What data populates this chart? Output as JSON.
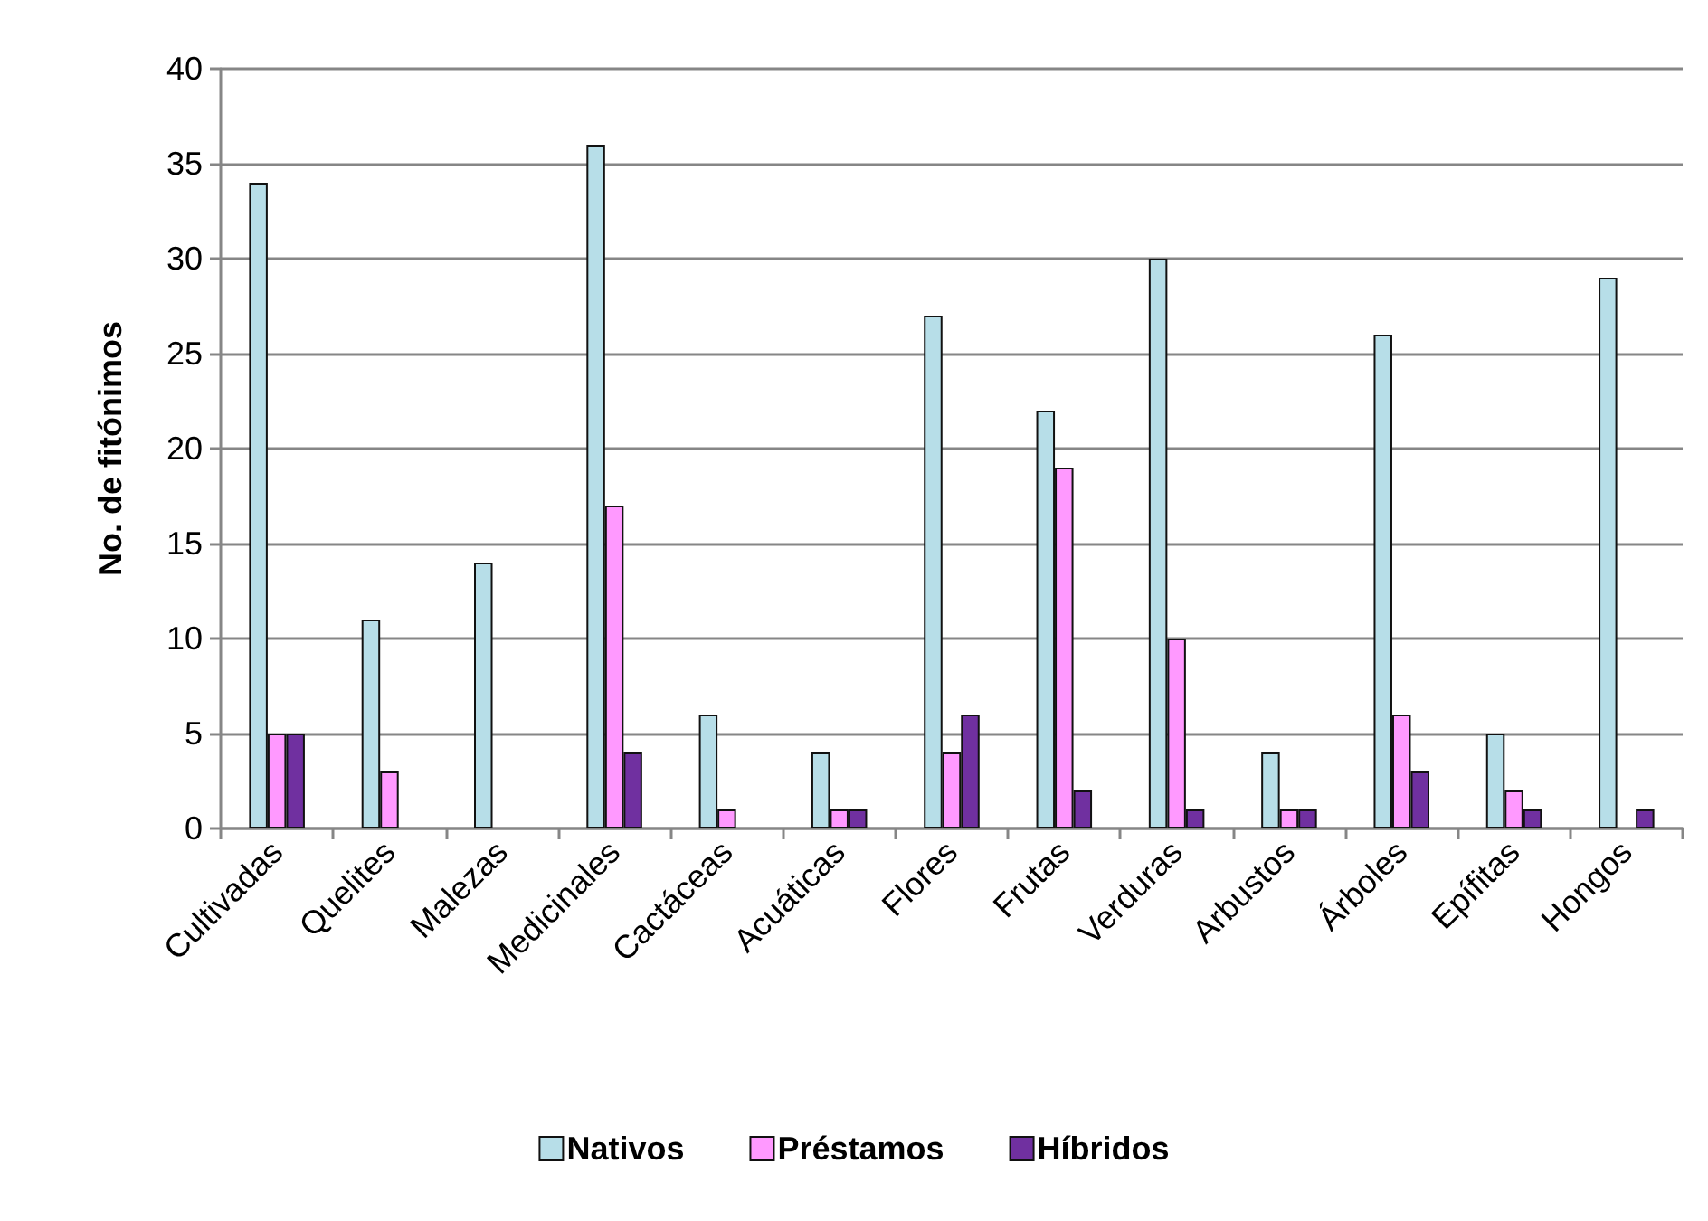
{
  "chart_data": {
    "type": "bar",
    "ylabel": "No. de fitónimos",
    "categories": [
      "Cultivadas",
      "Quelites",
      "Malezas",
      "Medicinales",
      "Cactáceas",
      "Acuáticas",
      "Flores",
      "Frutas",
      "Verduras",
      "Arbustos",
      "Árboles",
      "Epífitas",
      "Hongos"
    ],
    "series": [
      {
        "name": "Nativos",
        "color": "#b7dee8",
        "values": [
          34,
          11,
          14,
          36,
          6,
          4,
          27,
          22,
          30,
          4,
          26,
          5,
          29
        ]
      },
      {
        "name": "Préstamos",
        "color": "#ff99ff",
        "values": [
          5,
          3,
          0,
          17,
          1,
          1,
          4,
          19,
          10,
          1,
          6,
          2,
          0
        ]
      },
      {
        "name": "Híbridos",
        "color": "#7030a0",
        "values": [
          5,
          0,
          0,
          4,
          0,
          1,
          6,
          2,
          1,
          1,
          3,
          1,
          1
        ]
      }
    ],
    "ylim": [
      0,
      40
    ],
    "yticks": [
      0,
      5,
      10,
      15,
      20,
      25,
      30,
      35,
      40
    ],
    "grid": "y",
    "legend": "bottom"
  }
}
